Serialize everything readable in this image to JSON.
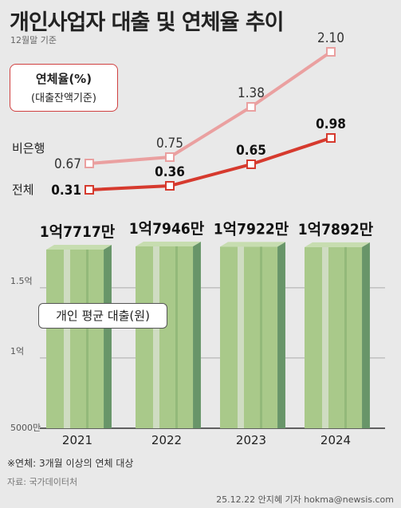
{
  "title": "개인사업자 대출 및 연체율 추이",
  "subtitle": "12월말 기준",
  "legend_box": {
    "line1": "연체율(%)",
    "line2": "(대출잔액기준)"
  },
  "avg_box_label": "개인 평균 대출(원)",
  "footnote": "※연체: 3개월 이상의 연체 대상",
  "source": "자료: 국가데이터처",
  "credit": "25.12.22 안지혜 기자 hokma@newsis.com",
  "colors": {
    "nonbank": "#eaa0a0",
    "total": "#d63a2e",
    "bill": "#a9c98a",
    "bill_dark": "#6d9a6e"
  },
  "chart_data": [
    {
      "type": "line",
      "title": "연체율(%)",
      "x": [
        "2021",
        "2022",
        "2023",
        "2024"
      ],
      "series": [
        {
          "name": "비은행",
          "values": [
            0.67,
            0.75,
            1.38,
            2.1
          ],
          "labels": [
            "0.67",
            "0.75",
            "1.38",
            "2.10"
          ]
        },
        {
          "name": "전체",
          "values": [
            0.31,
            0.36,
            0.65,
            0.98
          ],
          "labels": [
            "0.31",
            "0.36",
            "0.65",
            "0.98"
          ]
        }
      ]
    },
    {
      "type": "bar",
      "title": "개인 평균 대출(원)",
      "categories": [
        "2021",
        "2022",
        "2023",
        "2024"
      ],
      "values": [
        177170000,
        179460000,
        179220000,
        178920000
      ],
      "value_labels": [
        "1억7717만",
        "1억7946만",
        "1억7922만",
        "1억7892만"
      ],
      "ylim": [
        50000000,
        180000000
      ],
      "yticks": [
        {
          "value": 150000000,
          "label": "1.5억"
        },
        {
          "value": 100000000,
          "label": "1억"
        },
        {
          "value": 50000000,
          "label": "5000만"
        }
      ],
      "grid": true
    }
  ]
}
